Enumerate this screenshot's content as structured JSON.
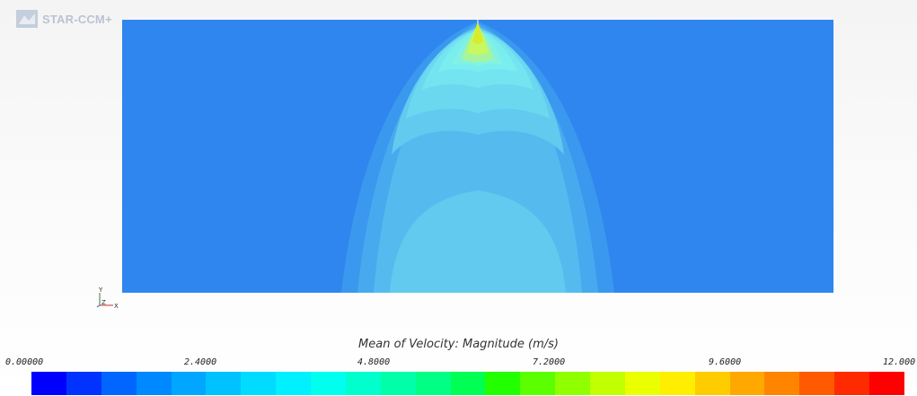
{
  "app": {
    "logo_text": "STAR-CCM+"
  },
  "axes": {
    "y": "Y",
    "z": "Z",
    "x": "X"
  },
  "legend": {
    "title": "Mean of Velocity: Magnitude (m/s)",
    "min": 0.0,
    "max": 12.0,
    "ticks": [
      "0.00000",
      "2.4000",
      "4.8000",
      "7.2000",
      "9.6000",
      "12.000"
    ],
    "colors": [
      "#0000ff",
      "#0033ff",
      "#0066ff",
      "#0088ff",
      "#00a6ff",
      "#00c2ff",
      "#00dcff",
      "#00f0ff",
      "#00ffee",
      "#00ffcc",
      "#00ffa8",
      "#00ff84",
      "#00ff55",
      "#22ff00",
      "#5cff00",
      "#90ff00",
      "#c2ff00",
      "#eaff00",
      "#ffee00",
      "#ffcc00",
      "#ffa800",
      "#ff8400",
      "#ff5a00",
      "#ff2a00",
      "#ff0000"
    ]
  },
  "plot": {
    "background_color": "#2e86ee",
    "contour_colors": [
      "#3a98ef",
      "#48aaee",
      "#55bbef",
      "#62caef",
      "#6cd8f0",
      "#74e4f0",
      "#7aedef",
      "#84f2e0",
      "#a6f59c",
      "#c8f760",
      "#d7ec2c"
    ]
  }
}
